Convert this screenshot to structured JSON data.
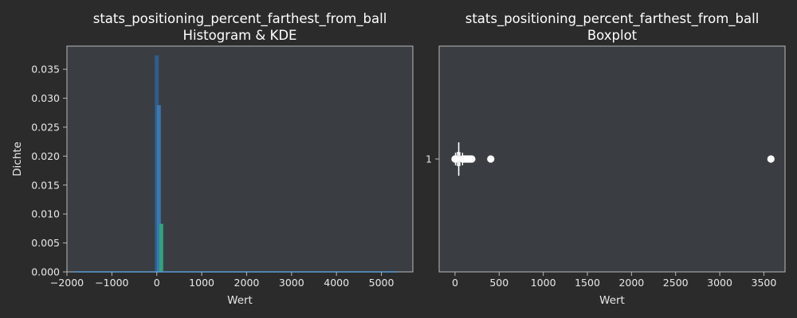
{
  "figure": {
    "background": "#2b2b2b",
    "panel_color": "#3a3e42",
    "spine_color": "#b8b8b8"
  },
  "chart_data": [
    {
      "type": "histogram",
      "title": "stats_positioning_percent_farthest_from_ball",
      "subtitle": "Histogram & KDE",
      "xlabel": "Wert",
      "ylabel": "Dichte",
      "xlim": [
        -2000,
        5700
      ],
      "ylim": [
        0,
        0.039
      ],
      "x_ticks": [
        -2000,
        -1000,
        0,
        1000,
        2000,
        3000,
        4000,
        5000
      ],
      "x_tick_labels": [
        "−2000",
        "−1000",
        "0",
        "1000",
        "2000",
        "3000",
        "4000",
        "5000"
      ],
      "y_ticks": [
        0,
        0.005,
        0.01,
        0.015,
        0.02,
        0.025,
        0.03,
        0.035
      ],
      "y_tick_labels": [
        "0.000",
        "0.005",
        "0.010",
        "0.015",
        "0.020",
        "0.025",
        "0.030",
        "0.035"
      ],
      "grid": false,
      "bars": [
        {
          "x": 0,
          "value": 0.0374,
          "color": "#2f5f8f"
        },
        {
          "x": 45,
          "value": 0.0288,
          "color": "#3a7bb5"
        },
        {
          "x": 100,
          "value": 0.0083,
          "color": "#2ea67c"
        }
      ],
      "kde": {
        "x": [
          -1850,
          5350
        ],
        "y": [
          0,
          0
        ],
        "color": "#5b9bd5"
      }
    },
    {
      "type": "boxplot",
      "title": "stats_positioning_percent_farthest_from_ball",
      "subtitle": "Boxplot",
      "xlabel": "Wert",
      "xlim": [
        -180,
        3740
      ],
      "x_ticks": [
        0,
        500,
        1000,
        1500,
        2000,
        2500,
        3000,
        3500
      ],
      "x_tick_labels": [
        "0",
        "500",
        "1000",
        "1500",
        "2000",
        "2500",
        "3000",
        "3500"
      ],
      "y_tick_labels": [
        "1"
      ],
      "grid": false,
      "color": "#ffffff",
      "whisker_low": 5,
      "q1": 25,
      "median": 42,
      "q3": 55,
      "whisker_high": 85,
      "outliers": [
        0,
        3,
        8,
        88,
        95,
        105,
        115,
        125,
        135,
        145,
        155,
        165,
        175,
        190,
        405,
        3580
      ]
    }
  ]
}
